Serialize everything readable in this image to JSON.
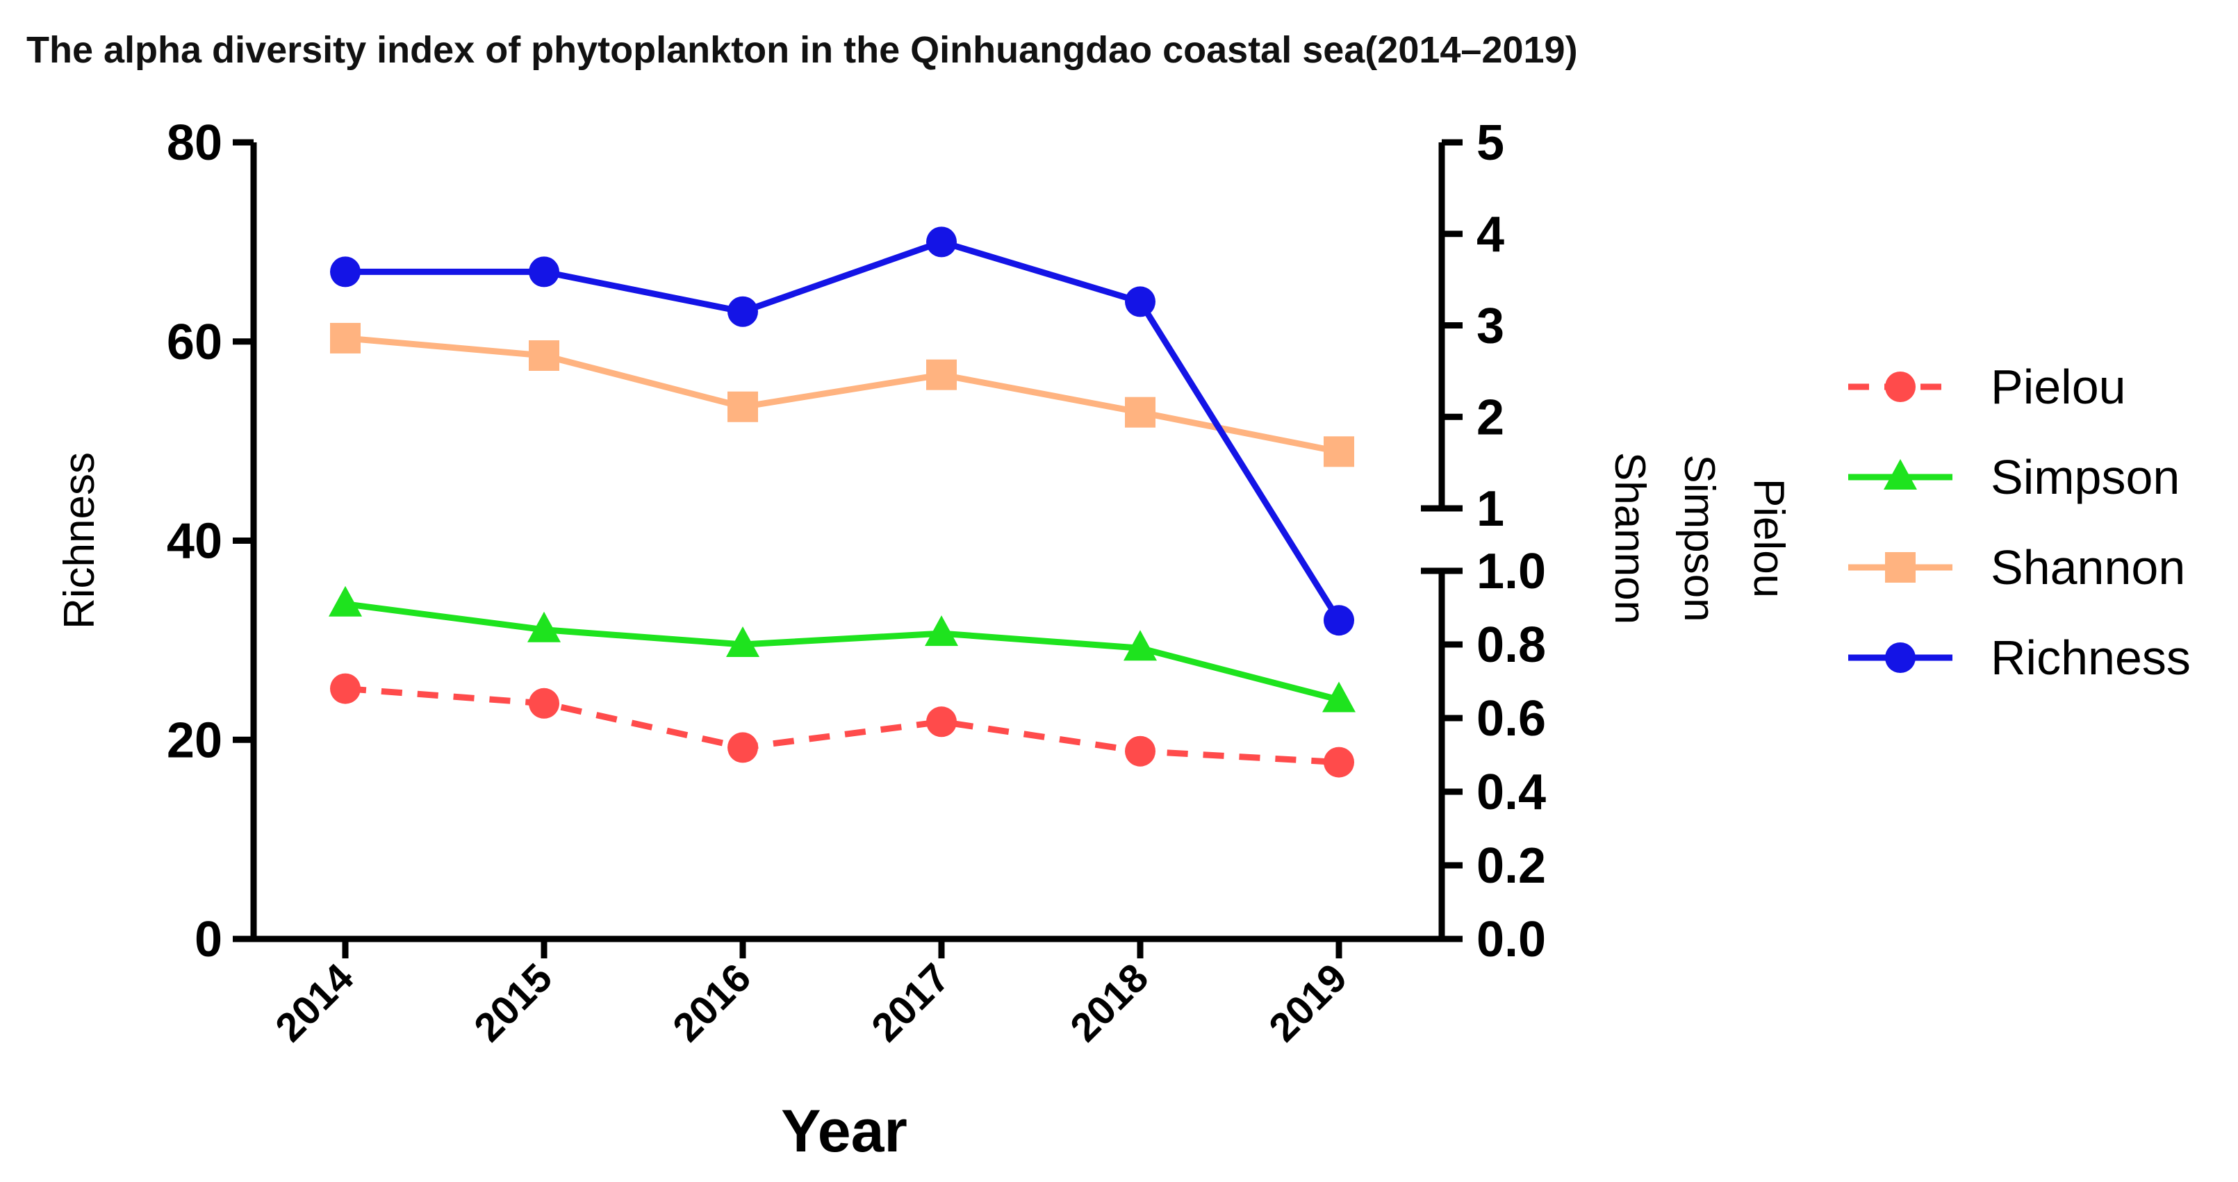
{
  "chart_data": {
    "type": "line",
    "title": "The alpha diversity index of phytoplankton in the Qinhuangdao coastal sea(2014–2019)",
    "xlabel": "Year",
    "ylabel_left": "Richness",
    "ylabel_right": [
      "Pielou",
      "Simpson",
      "Shannon"
    ],
    "categories": [
      "2014",
      "2015",
      "2016",
      "2017",
      "2018",
      "2019"
    ],
    "left_axis": {
      "min": 0,
      "max": 80,
      "ticks": [
        "0",
        "20",
        "40",
        "60",
        "80"
      ]
    },
    "right_axis_upper": {
      "min": 1,
      "max": 5,
      "ticks": [
        "1",
        "2",
        "3",
        "4",
        "5"
      ]
    },
    "right_axis_lower": {
      "min": 0.0,
      "max": 1.0,
      "ticks": [
        "0.0",
        "0.2",
        "0.4",
        "0.6",
        "0.8",
        "1.0"
      ]
    },
    "series": [
      {
        "name": "Pielou",
        "axis": "right-lower",
        "color": "#ff4b4b",
        "marker": "circle",
        "dashed": true,
        "values": [
          0.68,
          0.64,
          0.52,
          0.59,
          0.51,
          0.48
        ]
      },
      {
        "name": "Simpson",
        "axis": "right-lower",
        "color": "#1ee31e",
        "marker": "triangle",
        "dashed": false,
        "values": [
          0.91,
          0.84,
          0.8,
          0.83,
          0.79,
          0.65
        ]
      },
      {
        "name": "Shannon",
        "axis": "right-upper",
        "color": "#ffb380",
        "marker": "square",
        "dashed": false,
        "values": [
          2.86,
          2.67,
          2.11,
          2.46,
          2.05,
          1.62
        ]
      },
      {
        "name": "Richness",
        "axis": "left",
        "color": "#1414e6",
        "marker": "circle",
        "dashed": false,
        "values": [
          67,
          67,
          63,
          70,
          64,
          32
        ]
      }
    ],
    "legend_position": "right"
  }
}
